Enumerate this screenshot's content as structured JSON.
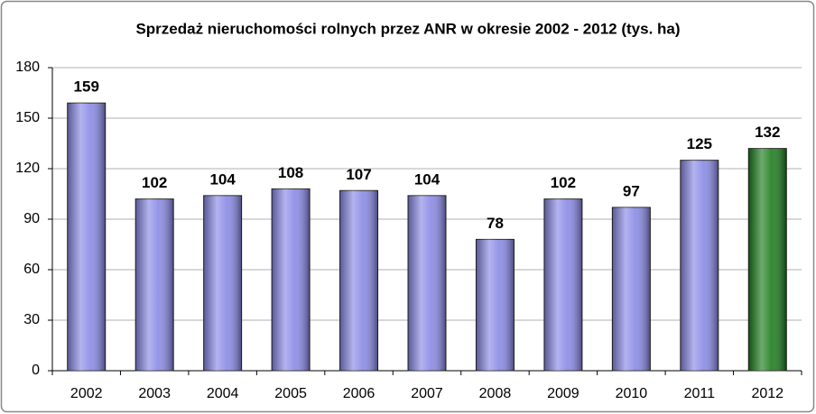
{
  "chart_data": {
    "type": "bar",
    "title": "Sprzedaż nieruchomości rolnych przez ANR w okresie 2002 - 2012 (tys. ha)",
    "categories": [
      "2002",
      "2003",
      "2004",
      "2005",
      "2006",
      "2007",
      "2008",
      "2009",
      "2010",
      "2011",
      "2012"
    ],
    "values": [
      159,
      102,
      104,
      108,
      107,
      104,
      78,
      102,
      97,
      125,
      132
    ],
    "colors": [
      "#8a8ae6",
      "#8a8ae6",
      "#8a8ae6",
      "#8a8ae6",
      "#8a8ae6",
      "#8a8ae6",
      "#8a8ae6",
      "#8a8ae6",
      "#8a8ae6",
      "#8a8ae6",
      "#1e7d1e"
    ],
    "ylim": [
      0,
      180
    ],
    "yticks": [
      0,
      30,
      60,
      90,
      120,
      150,
      180
    ],
    "grid": true
  }
}
